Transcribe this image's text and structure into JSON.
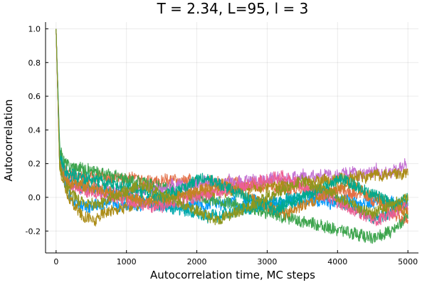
{
  "chart_data": {
    "type": "line",
    "title": "T = 2.34, L=95, l = 3",
    "xlabel": "Autocorrelation time, MC steps",
    "ylabel": "Autocorrelation",
    "xlim": [
      -150,
      5150
    ],
    "ylim": [
      -0.33,
      1.04
    ],
    "xticks": [
      0,
      1000,
      2000,
      3000,
      4000,
      5000
    ],
    "xtick_labels": [
      "0",
      "1000",
      "2000",
      "3000",
      "4000",
      "5000"
    ],
    "yticks": [
      -0.2,
      0.0,
      0.2,
      0.4,
      0.6,
      0.8,
      1.0
    ],
    "ytick_labels": [
      "-0.2",
      "0.0",
      "0.2",
      "0.4",
      "0.6",
      "0.8",
      "1.0"
    ],
    "grid": true,
    "legend": "none",
    "x_step": 50,
    "series": [
      {
        "color": "#009AFA",
        "values": [
          1.0,
          0.2,
          0.12,
          0.05,
          0.0,
          -0.02,
          -0.05,
          -0.06,
          -0.04,
          -0.07,
          -0.05,
          -0.03,
          -0.05,
          -0.06,
          -0.03,
          -0.04,
          -0.02,
          -0.05,
          -0.06,
          -0.04,
          -0.05,
          -0.03,
          -0.04,
          -0.06,
          -0.05,
          -0.03,
          -0.02,
          -0.04,
          -0.05,
          -0.03,
          -0.06,
          -0.04,
          -0.05,
          -0.03,
          -0.02,
          -0.04,
          -0.05,
          -0.06,
          -0.04,
          -0.03,
          -0.05,
          -0.04,
          -0.06,
          -0.05,
          -0.03,
          -0.02,
          -0.04,
          -0.05,
          -0.03,
          -0.04,
          -0.02,
          -0.03,
          -0.05,
          -0.04,
          -0.02,
          -0.03,
          -0.01,
          -0.02,
          -0.04,
          -0.03,
          -0.05,
          -0.04,
          -0.02,
          -0.03,
          -0.05,
          -0.04,
          -0.02,
          -0.01,
          -0.03,
          -0.04,
          -0.02,
          -0.03,
          -0.01,
          0.0,
          -0.02,
          -0.03,
          -0.01,
          -0.02,
          -0.04,
          -0.03,
          -0.02,
          -0.03,
          -0.01,
          -0.02,
          -0.04,
          -0.03,
          -0.05,
          -0.04,
          -0.02,
          -0.03,
          -0.04,
          -0.02,
          -0.01,
          -0.03,
          -0.04,
          -0.02,
          -0.03,
          -0.05,
          -0.04,
          -0.03,
          -0.04
        ]
      },
      {
        "color": "#E36F47",
        "values": [
          1.0,
          0.25,
          0.18,
          0.14,
          0.12,
          0.13,
          0.11,
          0.14,
          0.12,
          0.1,
          0.13,
          0.11,
          0.12,
          0.14,
          0.1,
          0.12,
          0.11,
          0.13,
          0.12,
          0.1,
          0.11,
          0.13,
          0.12,
          0.1,
          0.11,
          0.09,
          0.12,
          0.1,
          0.11,
          0.08,
          0.1,
          0.12,
          0.09,
          0.11,
          0.1,
          0.08,
          0.1,
          0.09,
          0.11,
          0.08,
          0.1,
          0.09,
          0.07,
          0.09,
          0.1,
          0.08,
          0.09,
          0.07,
          0.08,
          0.1,
          0.07,
          0.09,
          0.08,
          0.06,
          0.08,
          0.07,
          0.09,
          0.06,
          0.07,
          0.05,
          0.07,
          0.08,
          0.06,
          0.05,
          0.07,
          0.06,
          0.04,
          0.06,
          0.05,
          0.07,
          0.04,
          0.05,
          0.03,
          0.05,
          0.04,
          0.06,
          0.03,
          0.04,
          0.02,
          0.04,
          0.03,
          0.05,
          0.02,
          0.03,
          0.01,
          0.03,
          0.02,
          0.04,
          0.01,
          0.0,
          -0.02,
          0.0,
          -0.03,
          -0.05,
          -0.07,
          -0.08,
          -0.1,
          -0.12,
          -0.14,
          -0.15,
          -0.13
        ]
      },
      {
        "color": "#3DA44D",
        "values": [
          1.0,
          0.3,
          0.22,
          0.2,
          0.18,
          0.19,
          0.17,
          0.18,
          0.16,
          0.17,
          0.15,
          0.16,
          0.14,
          0.15,
          0.13,
          0.14,
          0.12,
          0.13,
          0.11,
          0.12,
          0.1,
          0.11,
          0.09,
          0.1,
          0.08,
          0.09,
          0.07,
          0.08,
          0.06,
          0.07,
          0.05,
          0.06,
          0.04,
          0.05,
          0.03,
          0.04,
          0.02,
          0.03,
          0.01,
          0.02,
          0.0,
          0.01,
          -0.01,
          0.0,
          -0.02,
          -0.01,
          -0.03,
          -0.02,
          -0.04,
          -0.03,
          -0.05,
          -0.04,
          -0.06,
          -0.05,
          -0.07,
          -0.06,
          -0.08,
          -0.07,
          -0.09,
          -0.08,
          -0.1,
          -0.09,
          -0.11,
          -0.1,
          -0.12,
          -0.11,
          -0.13,
          -0.12,
          -0.14,
          -0.13,
          -0.15,
          -0.14,
          -0.16,
          -0.15,
          -0.17,
          -0.16,
          -0.18,
          -0.17,
          -0.19,
          -0.18,
          -0.2,
          -0.19,
          -0.21,
          -0.2,
          -0.22,
          -0.21,
          -0.23,
          -0.22,
          -0.24,
          -0.23,
          -0.25,
          -0.24,
          -0.22,
          -0.23,
          -0.2,
          -0.21,
          -0.19,
          -0.17,
          -0.15,
          -0.13,
          -0.12
        ]
      },
      {
        "color": "#C371D2",
        "values": [
          1.0,
          0.22,
          0.15,
          0.1,
          0.08,
          0.06,
          0.07,
          0.05,
          0.08,
          0.06,
          0.04,
          0.07,
          0.05,
          0.03,
          0.06,
          0.04,
          0.02,
          0.05,
          0.03,
          0.01,
          0.04,
          0.02,
          0.05,
          0.03,
          0.06,
          0.04,
          0.07,
          0.05,
          0.03,
          0.06,
          0.04,
          0.07,
          0.05,
          0.08,
          0.06,
          0.09,
          0.07,
          0.05,
          0.08,
          0.06,
          0.09,
          0.07,
          0.1,
          0.08,
          0.06,
          0.09,
          0.07,
          0.1,
          0.08,
          0.11,
          0.09,
          0.07,
          0.1,
          0.08,
          0.11,
          0.09,
          0.12,
          0.1,
          0.08,
          0.11,
          0.09,
          0.12,
          0.1,
          0.13,
          0.11,
          0.09,
          0.12,
          0.1,
          0.13,
          0.11,
          0.14,
          0.12,
          0.1,
          0.13,
          0.11,
          0.14,
          0.12,
          0.15,
          0.13,
          0.11,
          0.14,
          0.12,
          0.15,
          0.13,
          0.16,
          0.14,
          0.12,
          0.15,
          0.13,
          0.16,
          0.14,
          0.17,
          0.15,
          0.13,
          0.16,
          0.14,
          0.17,
          0.15,
          0.18,
          0.2,
          0.16
        ]
      },
      {
        "color": "#AC8D18",
        "values": [
          1.0,
          0.18,
          0.1,
          0.03,
          -0.02,
          -0.05,
          -0.07,
          -0.1,
          -0.12,
          -0.11,
          -0.13,
          -0.15,
          -0.12,
          -0.1,
          -0.08,
          -0.09,
          -0.07,
          -0.08,
          -0.06,
          -0.07,
          -0.05,
          -0.06,
          -0.04,
          -0.05,
          -0.03,
          -0.04,
          -0.02,
          -0.03,
          -0.01,
          -0.02,
          0.0,
          -0.01,
          0.01,
          0.0,
          0.02,
          0.01,
          0.03,
          0.02,
          0.01,
          0.03,
          0.02,
          0.04,
          0.03,
          0.02,
          0.04,
          0.03,
          0.05,
          0.04,
          0.03,
          0.05,
          0.04,
          0.06,
          0.05,
          0.04,
          0.06,
          0.05,
          0.07,
          0.06,
          0.05,
          0.07,
          0.06,
          0.08,
          0.07,
          0.06,
          0.08,
          0.07,
          0.09,
          0.08,
          0.07,
          0.09,
          0.08,
          0.1,
          0.09,
          0.08,
          0.1,
          0.09,
          0.11,
          0.1,
          0.09,
          0.11,
          0.1,
          0.12,
          0.11,
          0.1,
          0.12,
          0.11,
          0.13,
          0.12,
          0.11,
          0.13,
          0.12,
          0.14,
          0.13,
          0.12,
          0.14,
          0.13,
          0.15,
          0.14,
          0.13,
          0.15,
          0.14
        ]
      },
      {
        "color": "#00A9AD",
        "values": [
          1.0,
          0.24,
          0.16,
          0.11,
          0.09,
          0.1,
          0.08,
          0.06,
          0.07,
          0.05,
          0.06,
          0.04,
          0.05,
          0.03,
          0.04,
          0.02,
          0.03,
          0.01,
          0.02,
          0.0,
          0.01,
          -0.01,
          0.0,
          -0.02,
          -0.01,
          -0.03,
          -0.02,
          -0.04,
          -0.03,
          -0.05,
          -0.04,
          -0.06,
          -0.05,
          -0.07,
          -0.06,
          -0.08,
          -0.07,
          -0.09,
          -0.08,
          -0.1,
          -0.09,
          -0.11,
          -0.1,
          -0.12,
          -0.11,
          -0.1,
          -0.12,
          -0.11,
          -0.09,
          -0.1,
          -0.08,
          -0.09,
          -0.07,
          -0.08,
          -0.06,
          -0.07,
          -0.05,
          -0.06,
          -0.04,
          -0.05,
          -0.03,
          -0.04,
          -0.02,
          -0.03,
          -0.01,
          -0.02,
          0.0,
          -0.01,
          0.01,
          0.0,
          0.02,
          0.01,
          0.03,
          0.02,
          0.04,
          0.03,
          0.02,
          0.01,
          0.0,
          -0.01,
          -0.02,
          -0.03,
          -0.04,
          -0.05,
          -0.06,
          -0.07,
          -0.08,
          -0.09,
          -0.1,
          -0.11,
          -0.12,
          -0.13,
          -0.12,
          -0.11,
          -0.1,
          -0.09,
          -0.08,
          -0.07,
          -0.06,
          -0.05,
          -0.04
        ]
      },
      {
        "color": "#ED5E93",
        "values": [
          1.0,
          0.2,
          0.13,
          0.09,
          0.07,
          0.05,
          0.06,
          0.04,
          0.05,
          0.03,
          0.04,
          0.02,
          0.03,
          0.01,
          0.02,
          0.0,
          0.01,
          -0.01,
          0.0,
          -0.02,
          -0.01,
          -0.03,
          -0.02,
          -0.04,
          -0.03,
          -0.05,
          -0.04,
          -0.06,
          -0.05,
          -0.04,
          -0.06,
          -0.05,
          -0.03,
          -0.04,
          -0.02,
          -0.03,
          -0.01,
          -0.02,
          0.0,
          -0.01,
          0.01,
          0.0,
          0.02,
          0.01,
          0.03,
          0.02,
          0.04,
          0.03,
          0.05,
          0.04,
          0.06,
          0.05,
          0.07,
          0.06,
          0.08,
          0.07,
          0.09,
          0.08,
          0.1,
          0.09,
          0.11,
          0.1,
          0.12,
          0.11,
          0.13,
          0.12,
          0.11,
          0.1,
          0.09,
          0.08,
          0.07,
          0.06,
          0.05,
          0.04,
          0.03,
          0.02,
          0.01,
          0.0,
          -0.01,
          -0.02,
          -0.03,
          -0.04,
          -0.05,
          -0.06,
          -0.07,
          -0.08,
          -0.09,
          -0.1,
          -0.11,
          -0.12,
          -0.13,
          -0.14,
          -0.13,
          -0.12,
          -0.11,
          -0.1,
          -0.09,
          -0.08,
          -0.07,
          -0.06,
          -0.05
        ]
      },
      {
        "color": "#C68225",
        "values": [
          1.0,
          0.21,
          0.14,
          0.1,
          0.08,
          0.09,
          0.07,
          0.08,
          0.06,
          0.07,
          0.05,
          0.06,
          0.04,
          0.05,
          0.03,
          0.04,
          0.02,
          0.03,
          0.01,
          0.02,
          0.0,
          0.01,
          -0.01,
          0.0,
          -0.02,
          -0.01,
          -0.03,
          -0.02,
          -0.01,
          -0.03,
          -0.02,
          0.0,
          -0.01,
          0.01,
          0.0,
          0.02,
          0.01,
          0.03,
          0.02,
          0.04,
          0.03,
          0.05,
          0.04,
          0.06,
          0.05,
          0.07,
          0.06,
          0.08,
          0.07,
          0.06,
          0.05,
          0.04,
          0.03,
          0.02,
          0.01,
          0.0,
          -0.01,
          -0.02,
          -0.03,
          -0.04,
          -0.05,
          -0.06,
          -0.07,
          -0.08,
          -0.09,
          -0.1,
          -0.09,
          -0.08,
          -0.07,
          -0.06,
          -0.05,
          -0.04,
          -0.03,
          -0.02,
          -0.01,
          0.0,
          0.01,
          0.02,
          0.03,
          0.04,
          0.05,
          0.06,
          0.07,
          0.08,
          0.07,
          0.06,
          0.05,
          0.04,
          0.03,
          0.02,
          0.01,
          0.0,
          -0.01,
          -0.02,
          -0.03,
          -0.04,
          -0.05,
          -0.06,
          -0.07,
          -0.08,
          -0.09
        ]
      },
      {
        "color": "#00A98D",
        "values": [
          1.0,
          0.26,
          0.19,
          0.15,
          0.13,
          0.14,
          0.12,
          0.13,
          0.11,
          0.12,
          0.1,
          0.11,
          0.09,
          0.1,
          0.08,
          0.09,
          0.07,
          0.08,
          0.06,
          0.07,
          0.05,
          0.06,
          0.04,
          0.05,
          0.03,
          0.04,
          0.02,
          0.03,
          0.01,
          0.02,
          0.0,
          0.01,
          0.02,
          0.03,
          0.04,
          0.05,
          0.06,
          0.07,
          0.08,
          0.09,
          0.1,
          0.11,
          0.12,
          0.11,
          0.1,
          0.09,
          0.08,
          0.07,
          0.06,
          0.05,
          0.04,
          0.03,
          0.02,
          0.01,
          0.0,
          -0.01,
          -0.02,
          -0.03,
          -0.04,
          -0.05,
          -0.06,
          -0.07,
          -0.08,
          -0.07,
          -0.06,
          -0.05,
          -0.04,
          -0.03,
          -0.02,
          -0.01,
          0.0,
          0.01,
          0.02,
          0.03,
          0.04,
          0.05,
          0.06,
          0.07,
          0.08,
          0.09,
          0.1,
          0.11,
          0.1,
          0.09,
          0.08,
          0.07,
          0.06,
          0.05,
          0.04,
          0.03,
          0.02,
          0.01,
          0.0,
          -0.01,
          -0.02,
          -0.03,
          -0.04,
          -0.03,
          -0.02,
          -0.01,
          0.0
        ]
      },
      {
        "color": "#8E971E",
        "values": [
          1.0,
          0.19,
          0.11,
          0.06,
          0.03,
          0.01,
          -0.01,
          -0.03,
          -0.02,
          -0.04,
          -0.03,
          -0.05,
          -0.04,
          -0.03,
          -0.02,
          -0.01,
          0.0,
          0.01,
          0.02,
          0.03,
          0.04,
          0.05,
          0.06,
          0.07,
          0.08,
          0.07,
          0.06,
          0.05,
          0.04,
          0.03,
          0.02,
          0.01,
          0.0,
          -0.01,
          -0.02,
          -0.03,
          -0.04,
          -0.05,
          -0.06,
          -0.07,
          -0.08,
          -0.09,
          -0.1,
          -0.11,
          -0.12,
          -0.13,
          -0.14,
          -0.13,
          -0.12,
          -0.11,
          -0.1,
          -0.09,
          -0.08,
          -0.07,
          -0.06,
          -0.05,
          -0.04,
          -0.03,
          -0.02,
          -0.01,
          0.0,
          0.01,
          0.02,
          0.03,
          0.04,
          0.05,
          0.06,
          0.07,
          0.08,
          0.09,
          0.1,
          0.09,
          0.08,
          0.07,
          0.06,
          0.05,
          0.04,
          0.03,
          0.02,
          0.01,
          0.0,
          -0.01,
          -0.02,
          -0.03,
          -0.04,
          -0.05,
          -0.06,
          -0.07,
          -0.08,
          -0.09,
          -0.1,
          -0.09,
          -0.08,
          -0.07,
          -0.06,
          -0.05,
          -0.04,
          -0.03,
          -0.02,
          -0.01,
          0.0
        ]
      }
    ]
  }
}
